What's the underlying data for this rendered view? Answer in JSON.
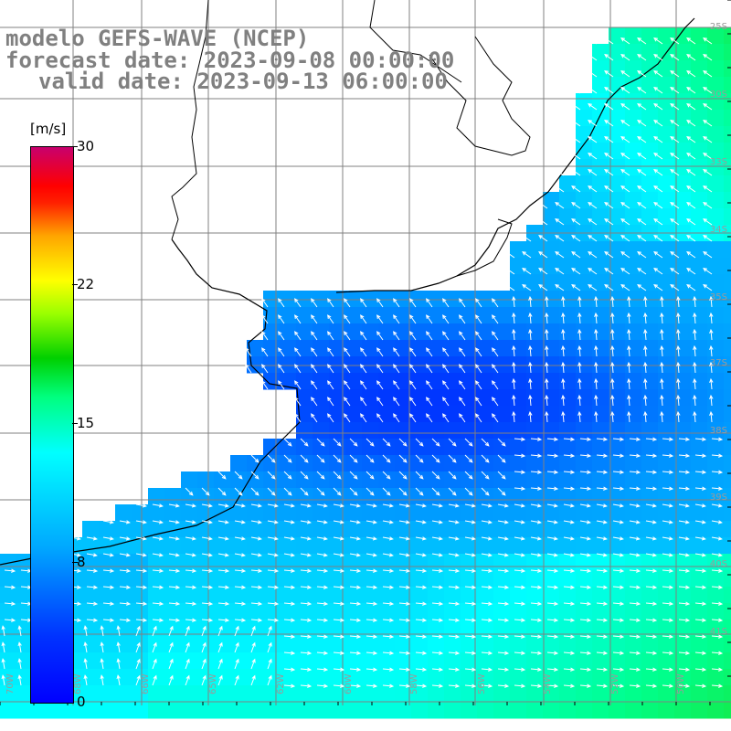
{
  "title": {
    "line1": "modelo GEFS-WAVE (NCEP)",
    "line2": "forecast date: 2023-09-08 00:00:00",
    "line3": "valid date: 2023-09-13 06:00:00"
  },
  "colorbar": {
    "unit": "[m/s]",
    "ticks": [
      "30",
      "22",
      "15",
      "8",
      "0"
    ],
    "colors": [
      "#0000ff",
      "#00a8ff",
      "#00ffff",
      "#00d000",
      "#ffff00",
      "#ff0000",
      "#c8006e"
    ]
  },
  "map": {
    "lat_labels": [
      "25S",
      "30S",
      "33S",
      "34S",
      "35S",
      "37S",
      "38S",
      "39S",
      "40S",
      "41S"
    ],
    "lon_labels": [
      "70W",
      "68W",
      "66W",
      "65W",
      "62W",
      "60W",
      "58W",
      "56W",
      "54W",
      "52W",
      "50W"
    ],
    "land_color": "#ffffff",
    "grid_color": "#808080",
    "coast_color": "#000000"
  }
}
